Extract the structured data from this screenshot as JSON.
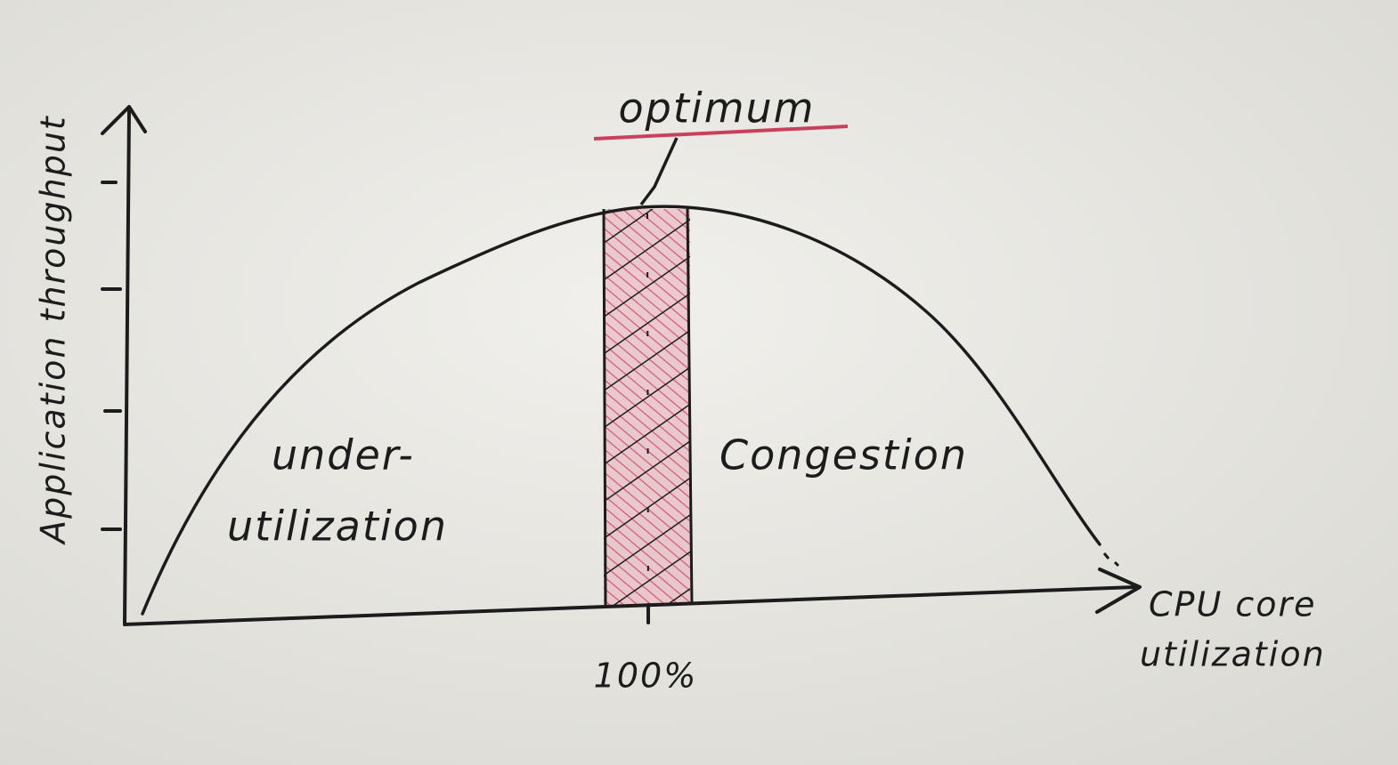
{
  "axes": {
    "y_label": "Application throughput",
    "x_label": [
      "CPU core",
      "utilization"
    ],
    "x_marker": "100%"
  },
  "annotations": {
    "optimum": "optimum"
  },
  "regions": [
    {
      "label": [
        "under-",
        "utilization"
      ]
    },
    {
      "label": [
        "Congestion"
      ]
    }
  ]
}
